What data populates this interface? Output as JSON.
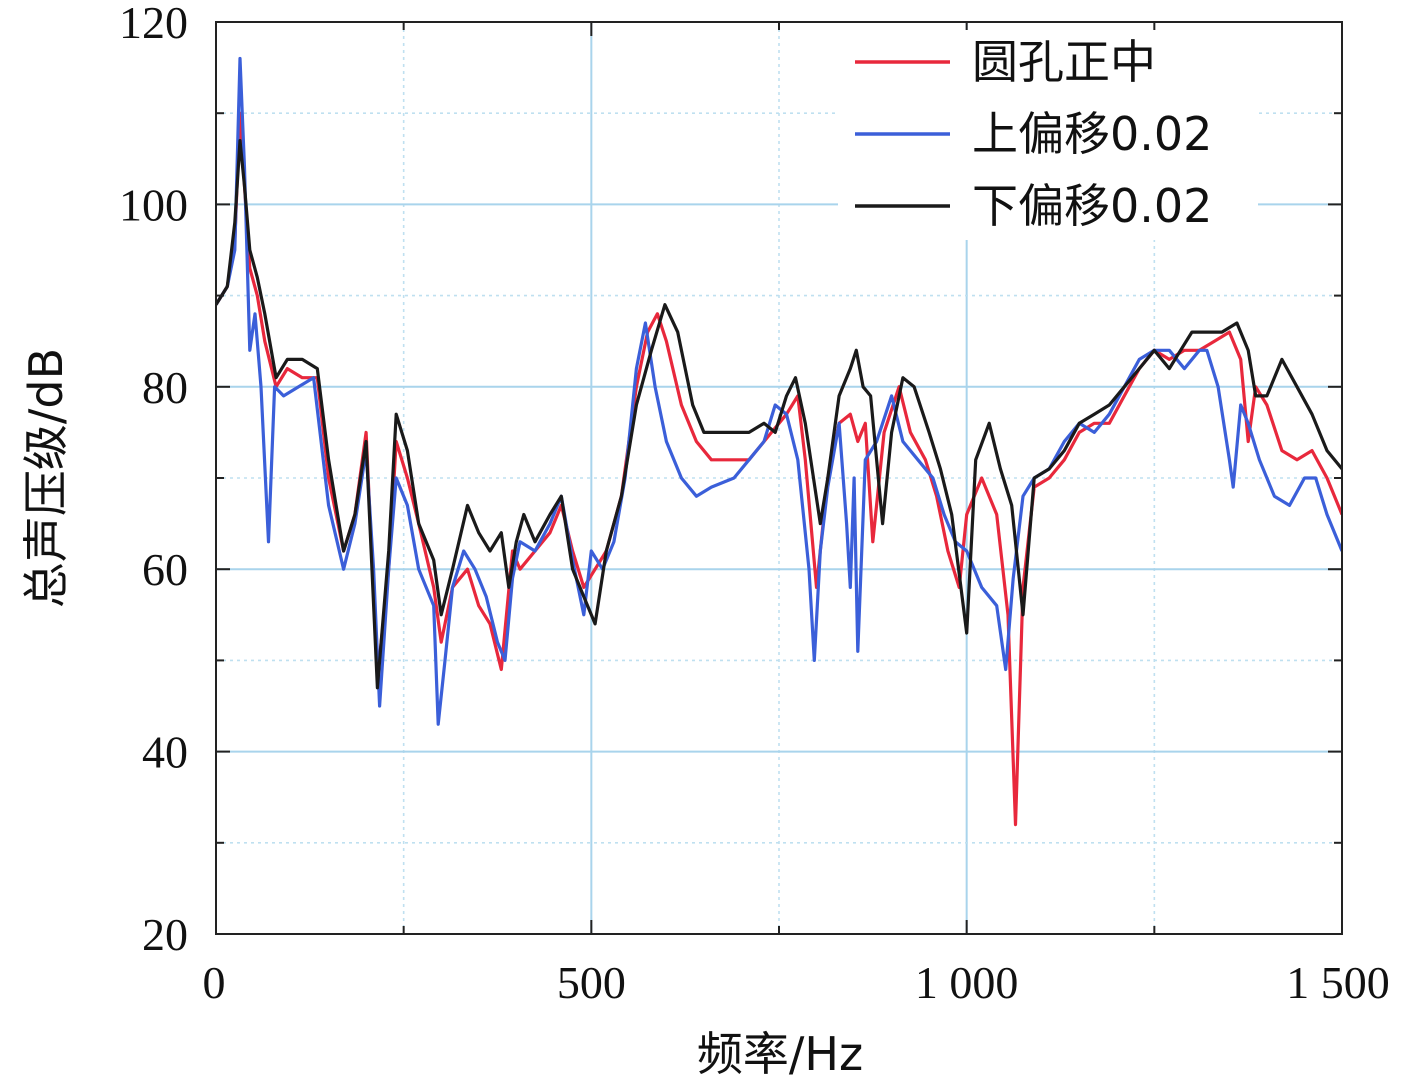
{
  "chart_data": {
    "type": "line",
    "title": "",
    "xlabel": "频率/Hz",
    "ylabel": "总声压级/dB",
    "xlim": [
      0,
      1500
    ],
    "ylim": [
      20,
      120
    ],
    "xticks": [
      0,
      500,
      1000,
      1500
    ],
    "xtick_labels": [
      "0",
      "500",
      "1 000",
      "1 500"
    ],
    "yticks": [
      20,
      40,
      60,
      80,
      100,
      120
    ],
    "ytick_labels": [
      "20",
      "40",
      "60",
      "80",
      "100",
      "120"
    ],
    "grid": true,
    "legend_position": "top-right",
    "series": [
      {
        "name": "圆孔正中",
        "color": "#e8283c",
        "points": [
          [
            0,
            89
          ],
          [
            15,
            91
          ],
          [
            25,
            96
          ],
          [
            32,
            110
          ],
          [
            38,
            102
          ],
          [
            45,
            93
          ],
          [
            55,
            90
          ],
          [
            65,
            85
          ],
          [
            80,
            80
          ],
          [
            95,
            82
          ],
          [
            115,
            81
          ],
          [
            135,
            81
          ],
          [
            150,
            70
          ],
          [
            170,
            62
          ],
          [
            185,
            66
          ],
          [
            200,
            75
          ],
          [
            215,
            48
          ],
          [
            230,
            60
          ],
          [
            240,
            74
          ],
          [
            255,
            70
          ],
          [
            270,
            65
          ],
          [
            290,
            58
          ],
          [
            300,
            52
          ],
          [
            315,
            58
          ],
          [
            335,
            60
          ],
          [
            350,
            56
          ],
          [
            365,
            54
          ],
          [
            380,
            49
          ],
          [
            395,
            62
          ],
          [
            405,
            60
          ],
          [
            425,
            62
          ],
          [
            445,
            64
          ],
          [
            460,
            67
          ],
          [
            475,
            62
          ],
          [
            490,
            58
          ],
          [
            505,
            60
          ],
          [
            520,
            62
          ],
          [
            540,
            68
          ],
          [
            560,
            80
          ],
          [
            575,
            86
          ],
          [
            588,
            88
          ],
          [
            600,
            85
          ],
          [
            620,
            78
          ],
          [
            640,
            74
          ],
          [
            660,
            72
          ],
          [
            690,
            72
          ],
          [
            710,
            72
          ],
          [
            740,
            75
          ],
          [
            760,
            77
          ],
          [
            775,
            79
          ],
          [
            785,
            72
          ],
          [
            800,
            58
          ],
          [
            815,
            70
          ],
          [
            830,
            76
          ],
          [
            845,
            77
          ],
          [
            855,
            74
          ],
          [
            865,
            76
          ],
          [
            875,
            63
          ],
          [
            890,
            75
          ],
          [
            910,
            80
          ],
          [
            925,
            75
          ],
          [
            945,
            72
          ],
          [
            960,
            68
          ],
          [
            975,
            62
          ],
          [
            990,
            58
          ],
          [
            1000,
            66
          ],
          [
            1020,
            70
          ],
          [
            1040,
            66
          ],
          [
            1055,
            55
          ],
          [
            1065,
            32
          ],
          [
            1075,
            58
          ],
          [
            1090,
            69
          ],
          [
            1110,
            70
          ],
          [
            1130,
            72
          ],
          [
            1150,
            75
          ],
          [
            1170,
            76
          ],
          [
            1190,
            76
          ],
          [
            1210,
            79
          ],
          [
            1230,
            82
          ],
          [
            1250,
            84
          ],
          [
            1270,
            83
          ],
          [
            1290,
            84
          ],
          [
            1310,
            84
          ],
          [
            1330,
            85
          ],
          [
            1350,
            86
          ],
          [
            1365,
            83
          ],
          [
            1375,
            74
          ],
          [
            1385,
            80
          ],
          [
            1400,
            78
          ],
          [
            1420,
            73
          ],
          [
            1440,
            72
          ],
          [
            1460,
            73
          ],
          [
            1480,
            70
          ],
          [
            1500,
            66
          ]
        ]
      },
      {
        "name": "上偏移0.02",
        "color": "#3b5fd9",
        "points": [
          [
            0,
            89
          ],
          [
            15,
            91
          ],
          [
            25,
            95
          ],
          [
            32,
            116
          ],
          [
            38,
            104
          ],
          [
            45,
            84
          ],
          [
            52,
            88
          ],
          [
            60,
            80
          ],
          [
            70,
            63
          ],
          [
            78,
            80
          ],
          [
            90,
            79
          ],
          [
            110,
            80
          ],
          [
            130,
            81
          ],
          [
            150,
            67
          ],
          [
            170,
            60
          ],
          [
            185,
            65
          ],
          [
            200,
            73
          ],
          [
            210,
            60
          ],
          [
            218,
            45
          ],
          [
            230,
            60
          ],
          [
            240,
            70
          ],
          [
            255,
            67
          ],
          [
            270,
            60
          ],
          [
            290,
            56
          ],
          [
            296,
            43
          ],
          [
            305,
            50
          ],
          [
            315,
            58
          ],
          [
            330,
            62
          ],
          [
            345,
            60
          ],
          [
            360,
            57
          ],
          [
            375,
            52
          ],
          [
            385,
            50
          ],
          [
            395,
            59
          ],
          [
            405,
            63
          ],
          [
            425,
            62
          ],
          [
            445,
            65
          ],
          [
            460,
            68
          ],
          [
            475,
            61
          ],
          [
            490,
            55
          ],
          [
            500,
            62
          ],
          [
            515,
            60
          ],
          [
            530,
            63
          ],
          [
            545,
            70
          ],
          [
            560,
            82
          ],
          [
            572,
            87
          ],
          [
            585,
            80
          ],
          [
            600,
            74
          ],
          [
            620,
            70
          ],
          [
            640,
            68
          ],
          [
            660,
            69
          ],
          [
            690,
            70
          ],
          [
            710,
            72
          ],
          [
            730,
            74
          ],
          [
            745,
            78
          ],
          [
            760,
            77
          ],
          [
            775,
            72
          ],
          [
            790,
            60
          ],
          [
            797,
            50
          ],
          [
            805,
            62
          ],
          [
            815,
            69
          ],
          [
            830,
            76
          ],
          [
            840,
            65
          ],
          [
            845,
            58
          ],
          [
            850,
            70
          ],
          [
            855,
            51
          ],
          [
            865,
            72
          ],
          [
            880,
            74
          ],
          [
            900,
            79
          ],
          [
            915,
            74
          ],
          [
            935,
            72
          ],
          [
            955,
            70
          ],
          [
            970,
            66
          ],
          [
            985,
            63
          ],
          [
            1000,
            62
          ],
          [
            1020,
            58
          ],
          [
            1040,
            56
          ],
          [
            1052,
            49
          ],
          [
            1062,
            59
          ],
          [
            1075,
            68
          ],
          [
            1090,
            70
          ],
          [
            1110,
            71
          ],
          [
            1130,
            74
          ],
          [
            1150,
            76
          ],
          [
            1170,
            75
          ],
          [
            1190,
            77
          ],
          [
            1210,
            80
          ],
          [
            1230,
            83
          ],
          [
            1250,
            84
          ],
          [
            1270,
            84
          ],
          [
            1290,
            82
          ],
          [
            1310,
            84
          ],
          [
            1320,
            84
          ],
          [
            1335,
            80
          ],
          [
            1350,
            72
          ],
          [
            1355,
            69
          ],
          [
            1365,
            78
          ],
          [
            1375,
            76
          ],
          [
            1390,
            72
          ],
          [
            1410,
            68
          ],
          [
            1430,
            67
          ],
          [
            1450,
            70
          ],
          [
            1465,
            70
          ],
          [
            1480,
            66
          ],
          [
            1500,
            62
          ]
        ]
      },
      {
        "name": "下偏移0.02",
        "color": "#1a1a1a",
        "points": [
          [
            0,
            89
          ],
          [
            15,
            91
          ],
          [
            25,
            98
          ],
          [
            32,
            107
          ],
          [
            38,
            102
          ],
          [
            45,
            95
          ],
          [
            55,
            92
          ],
          [
            65,
            88
          ],
          [
            80,
            81
          ],
          [
            95,
            83
          ],
          [
            115,
            83
          ],
          [
            135,
            82
          ],
          [
            150,
            72
          ],
          [
            170,
            62
          ],
          [
            185,
            66
          ],
          [
            200,
            74
          ],
          [
            215,
            47
          ],
          [
            230,
            62
          ],
          [
            240,
            77
          ],
          [
            255,
            73
          ],
          [
            270,
            65
          ],
          [
            290,
            61
          ],
          [
            300,
            55
          ],
          [
            315,
            60
          ],
          [
            335,
            67
          ],
          [
            350,
            64
          ],
          [
            365,
            62
          ],
          [
            380,
            64
          ],
          [
            390,
            58
          ],
          [
            400,
            63
          ],
          [
            410,
            66
          ],
          [
            425,
            63
          ],
          [
            445,
            66
          ],
          [
            460,
            68
          ],
          [
            475,
            60
          ],
          [
            490,
            57
          ],
          [
            505,
            54
          ],
          [
            520,
            62
          ],
          [
            540,
            68
          ],
          [
            560,
            78
          ],
          [
            580,
            84
          ],
          [
            598,
            89
          ],
          [
            615,
            86
          ],
          [
            635,
            78
          ],
          [
            650,
            75
          ],
          [
            680,
            75
          ],
          [
            710,
            75
          ],
          [
            730,
            76
          ],
          [
            745,
            75
          ],
          [
            760,
            79
          ],
          [
            772,
            81
          ],
          [
            785,
            76
          ],
          [
            805,
            65
          ],
          [
            815,
            70
          ],
          [
            830,
            79
          ],
          [
            845,
            82
          ],
          [
            853,
            84
          ],
          [
            862,
            80
          ],
          [
            872,
            79
          ],
          [
            888,
            65
          ],
          [
            900,
            75
          ],
          [
            915,
            81
          ],
          [
            930,
            80
          ],
          [
            950,
            75
          ],
          [
            965,
            71
          ],
          [
            980,
            66
          ],
          [
            1000,
            53
          ],
          [
            1012,
            72
          ],
          [
            1030,
            76
          ],
          [
            1045,
            71
          ],
          [
            1060,
            67
          ],
          [
            1075,
            55
          ],
          [
            1090,
            70
          ],
          [
            1110,
            71
          ],
          [
            1130,
            73
          ],
          [
            1150,
            76
          ],
          [
            1170,
            77
          ],
          [
            1190,
            78
          ],
          [
            1210,
            80
          ],
          [
            1230,
            82
          ],
          [
            1250,
            84
          ],
          [
            1270,
            82
          ],
          [
            1285,
            84
          ],
          [
            1300,
            86
          ],
          [
            1320,
            86
          ],
          [
            1340,
            86
          ],
          [
            1360,
            87
          ],
          [
            1375,
            84
          ],
          [
            1385,
            79
          ],
          [
            1400,
            79
          ],
          [
            1420,
            83
          ],
          [
            1440,
            80
          ],
          [
            1460,
            77
          ],
          [
            1480,
            73
          ],
          [
            1500,
            71
          ]
        ]
      }
    ]
  }
}
